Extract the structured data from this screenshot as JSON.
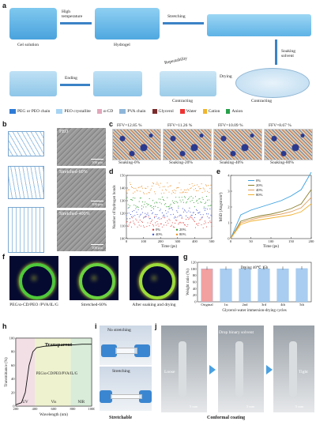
{
  "panel_letters": [
    "a",
    "b",
    "c",
    "d",
    "e",
    "f",
    "g",
    "h",
    "i",
    "j"
  ],
  "a": {
    "steps": [
      "Gel solution",
      "High temperature",
      "Hydrogel",
      "Stretching",
      "Soaking solvent",
      "Contracting",
      "Drying",
      "Contracting",
      "Repeatability",
      "Ending"
    ],
    "legend": [
      "PEG or PEO chain",
      "PEO crystallite",
      "α-CD",
      "PVA chain",
      "Glycerol",
      "Water",
      "Cation",
      "Anion"
    ]
  },
  "b": {
    "labels": [
      "PEO",
      "Stretched-60%",
      "Stretched-400%"
    ],
    "scalebars": [
      "100 μm",
      "100 μm",
      "100 μm"
    ]
  },
  "c": {
    "ffv": [
      "FFV=12.85 %",
      "FFV=11.26 %",
      "FFV=10.09 %",
      "FFV=8.67 %"
    ],
    "labels": [
      "Soaking-0%",
      "Soaking-20%",
      "Soaking-40%",
      "Soaking-80%"
    ]
  },
  "f": {
    "labels": [
      "PEG/α-CD/PEO /PVA/IL/G",
      "Stretched-60%",
      "After soaking and drying"
    ]
  },
  "g": {
    "title": "Drying 40℃ 15h"
  },
  "h": {
    "title": "Transparent",
    "series_label": "PEG/α-CD/PEO/PVA/IL/G",
    "regions": [
      "UV",
      "Vis",
      "NIR"
    ]
  },
  "i": {
    "labels": [
      "No stretching",
      "Stretching"
    ],
    "caption": "Stretchable"
  },
  "j": {
    "labels": [
      "Loose",
      "Drop binary solvent",
      "Tight"
    ],
    "scalebar": "5 mm",
    "caption": "Conformal coating"
  },
  "chart_data": [
    {
      "panel": "d",
      "type": "scatter",
      "xlabel": "Time (ps)",
      "ylabel": "Number of hydrogen bonds",
      "xlim": [
        0,
        500
      ],
      "ylim": [
        100,
        150
      ],
      "xticks": [
        0,
        100,
        200,
        300,
        400,
        500
      ],
      "yticks": [
        100,
        110,
        120,
        130,
        140,
        150
      ],
      "series": [
        {
          "name": "0%",
          "color": "#e23b3b",
          "mean": 113
        },
        {
          "name": "20%",
          "color": "#2b9c2b",
          "mean": 129
        },
        {
          "name": "40%",
          "color": "#3a4fd0",
          "mean": 120
        },
        {
          "name": "80%",
          "color": "#f08a1a",
          "mean": 140
        }
      ],
      "legend": "bottom"
    },
    {
      "panel": "e",
      "type": "line",
      "xlabel": "Time (ps)",
      "ylabel": "MSD (Angstrom²)",
      "xlim": [
        0,
        200
      ],
      "ylim": [
        0,
        4
      ],
      "xticks": [
        0,
        50,
        100,
        150,
        200
      ],
      "yticks": [
        0,
        1,
        2,
        3,
        4
      ],
      "x": [
        0,
        25,
        50,
        75,
        100,
        125,
        150,
        175,
        200
      ],
      "series": [
        {
          "name": "0%",
          "color": "#3aa0e0",
          "values": [
            0,
            1.5,
            1.8,
            2.0,
            2.2,
            2.4,
            2.7,
            3.1,
            4.2
          ]
        },
        {
          "name": "20%",
          "color": "#8a7d2a",
          "values": [
            0,
            1.1,
            1.3,
            1.45,
            1.55,
            1.7,
            1.9,
            2.2,
            3.1
          ]
        },
        {
          "name": "40%",
          "color": "#e0a060",
          "values": [
            0,
            1.0,
            1.2,
            1.35,
            1.45,
            1.55,
            1.7,
            1.95,
            2.6
          ]
        },
        {
          "name": "80%",
          "color": "#f0b030",
          "values": [
            0,
            0.9,
            1.1,
            1.2,
            1.3,
            1.4,
            1.5,
            1.7,
            2.2
          ]
        }
      ],
      "legend": "top-left"
    },
    {
      "panel": "g",
      "type": "bar",
      "xlabel": "Glycerol-water immersion-drying cycles",
      "ylabel": "Weight ratio (%)",
      "ylim": [
        0,
        120
      ],
      "yticks": [
        0,
        20,
        40,
        60,
        80,
        100,
        120
      ],
      "categories": [
        "Original",
        "1st",
        "2nd",
        "3rd",
        "4th",
        "5th"
      ],
      "values": [
        100,
        100,
        100,
        100,
        100,
        101
      ],
      "colors": [
        "#f2a0a0",
        "#a9cdf0",
        "#a9cdf0",
        "#a9cdf0",
        "#a9cdf0",
        "#a9cdf0"
      ]
    },
    {
      "panel": "h",
      "type": "line",
      "xlabel": "Wavelength (nm)",
      "ylabel": "Transmittance (%)",
      "xlim": [
        200,
        1000
      ],
      "ylim": [
        0,
        100
      ],
      "xticks": [
        200,
        400,
        600,
        800,
        1000
      ],
      "yticks": [
        0,
        20,
        40,
        60,
        80,
        100
      ],
      "x": [
        200,
        260,
        300,
        340,
        380,
        420,
        500,
        600,
        700,
        800,
        900,
        1000
      ],
      "series": [
        {
          "name": "PEG/α-CD/PEO/PVA/IL/G",
          "color": "#111111",
          "values": [
            2,
            5,
            20,
            60,
            80,
            86,
            88,
            89,
            90,
            90,
            91,
            91
          ]
        }
      ]
    }
  ]
}
